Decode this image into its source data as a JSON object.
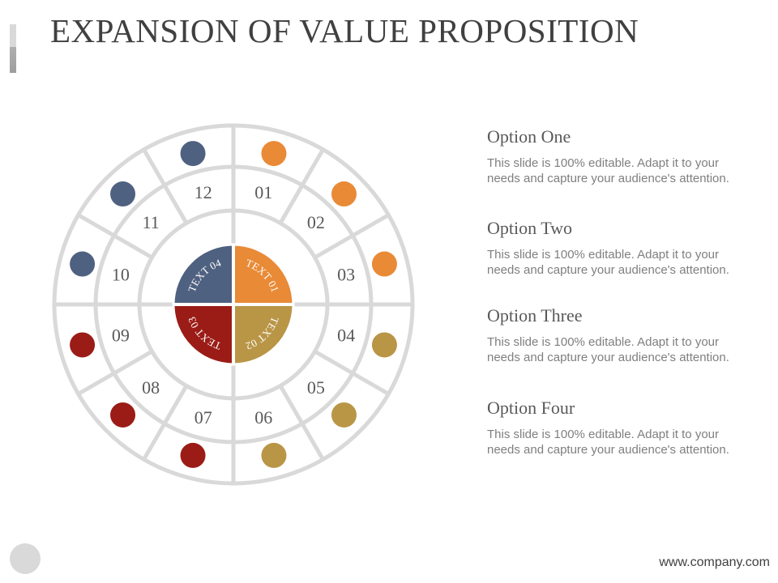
{
  "slide": {
    "title": "EXPANSION OF VALUE PROPOSITION",
    "footer_url": "www.company.com"
  },
  "colors": {
    "blue": "#4f6180",
    "orange": "#e98a37",
    "red": "#9b1c16",
    "gold": "#b99546",
    "ring": "#d9d9d9"
  },
  "wheel": {
    "center": [
      {
        "label": "TEXT 01",
        "color_key": "orange"
      },
      {
        "label": "TEXT 02",
        "color_key": "gold"
      },
      {
        "label": "TEXT 03",
        "color_key": "red"
      },
      {
        "label": "TEXT 04",
        "color_key": "blue"
      }
    ],
    "segments": [
      {
        "num": "01",
        "color_key": "orange"
      },
      {
        "num": "02",
        "color_key": "orange"
      },
      {
        "num": "03",
        "color_key": "orange"
      },
      {
        "num": "04",
        "color_key": "gold"
      },
      {
        "num": "05",
        "color_key": "gold"
      },
      {
        "num": "06",
        "color_key": "gold"
      },
      {
        "num": "07",
        "color_key": "red"
      },
      {
        "num": "08",
        "color_key": "red"
      },
      {
        "num": "09",
        "color_key": "red"
      },
      {
        "num": "10",
        "color_key": "blue"
      },
      {
        "num": "11",
        "color_key": "blue"
      },
      {
        "num": "12",
        "color_key": "blue"
      }
    ]
  },
  "options": [
    {
      "title": "Option One",
      "body": "This slide is 100% editable. Adapt it to your needs and capture your audience's attention."
    },
    {
      "title": "Option Two",
      "body": "This slide is 100% editable. Adapt it to your needs and capture your audience's attention."
    },
    {
      "title": "Option Three",
      "body": "This slide is 100% editable. Adapt it to your needs and capture your audience's attention."
    },
    {
      "title": "Option Four",
      "body": "This slide is 100% editable. Adapt it to your needs and capture your audience's attention."
    }
  ]
}
